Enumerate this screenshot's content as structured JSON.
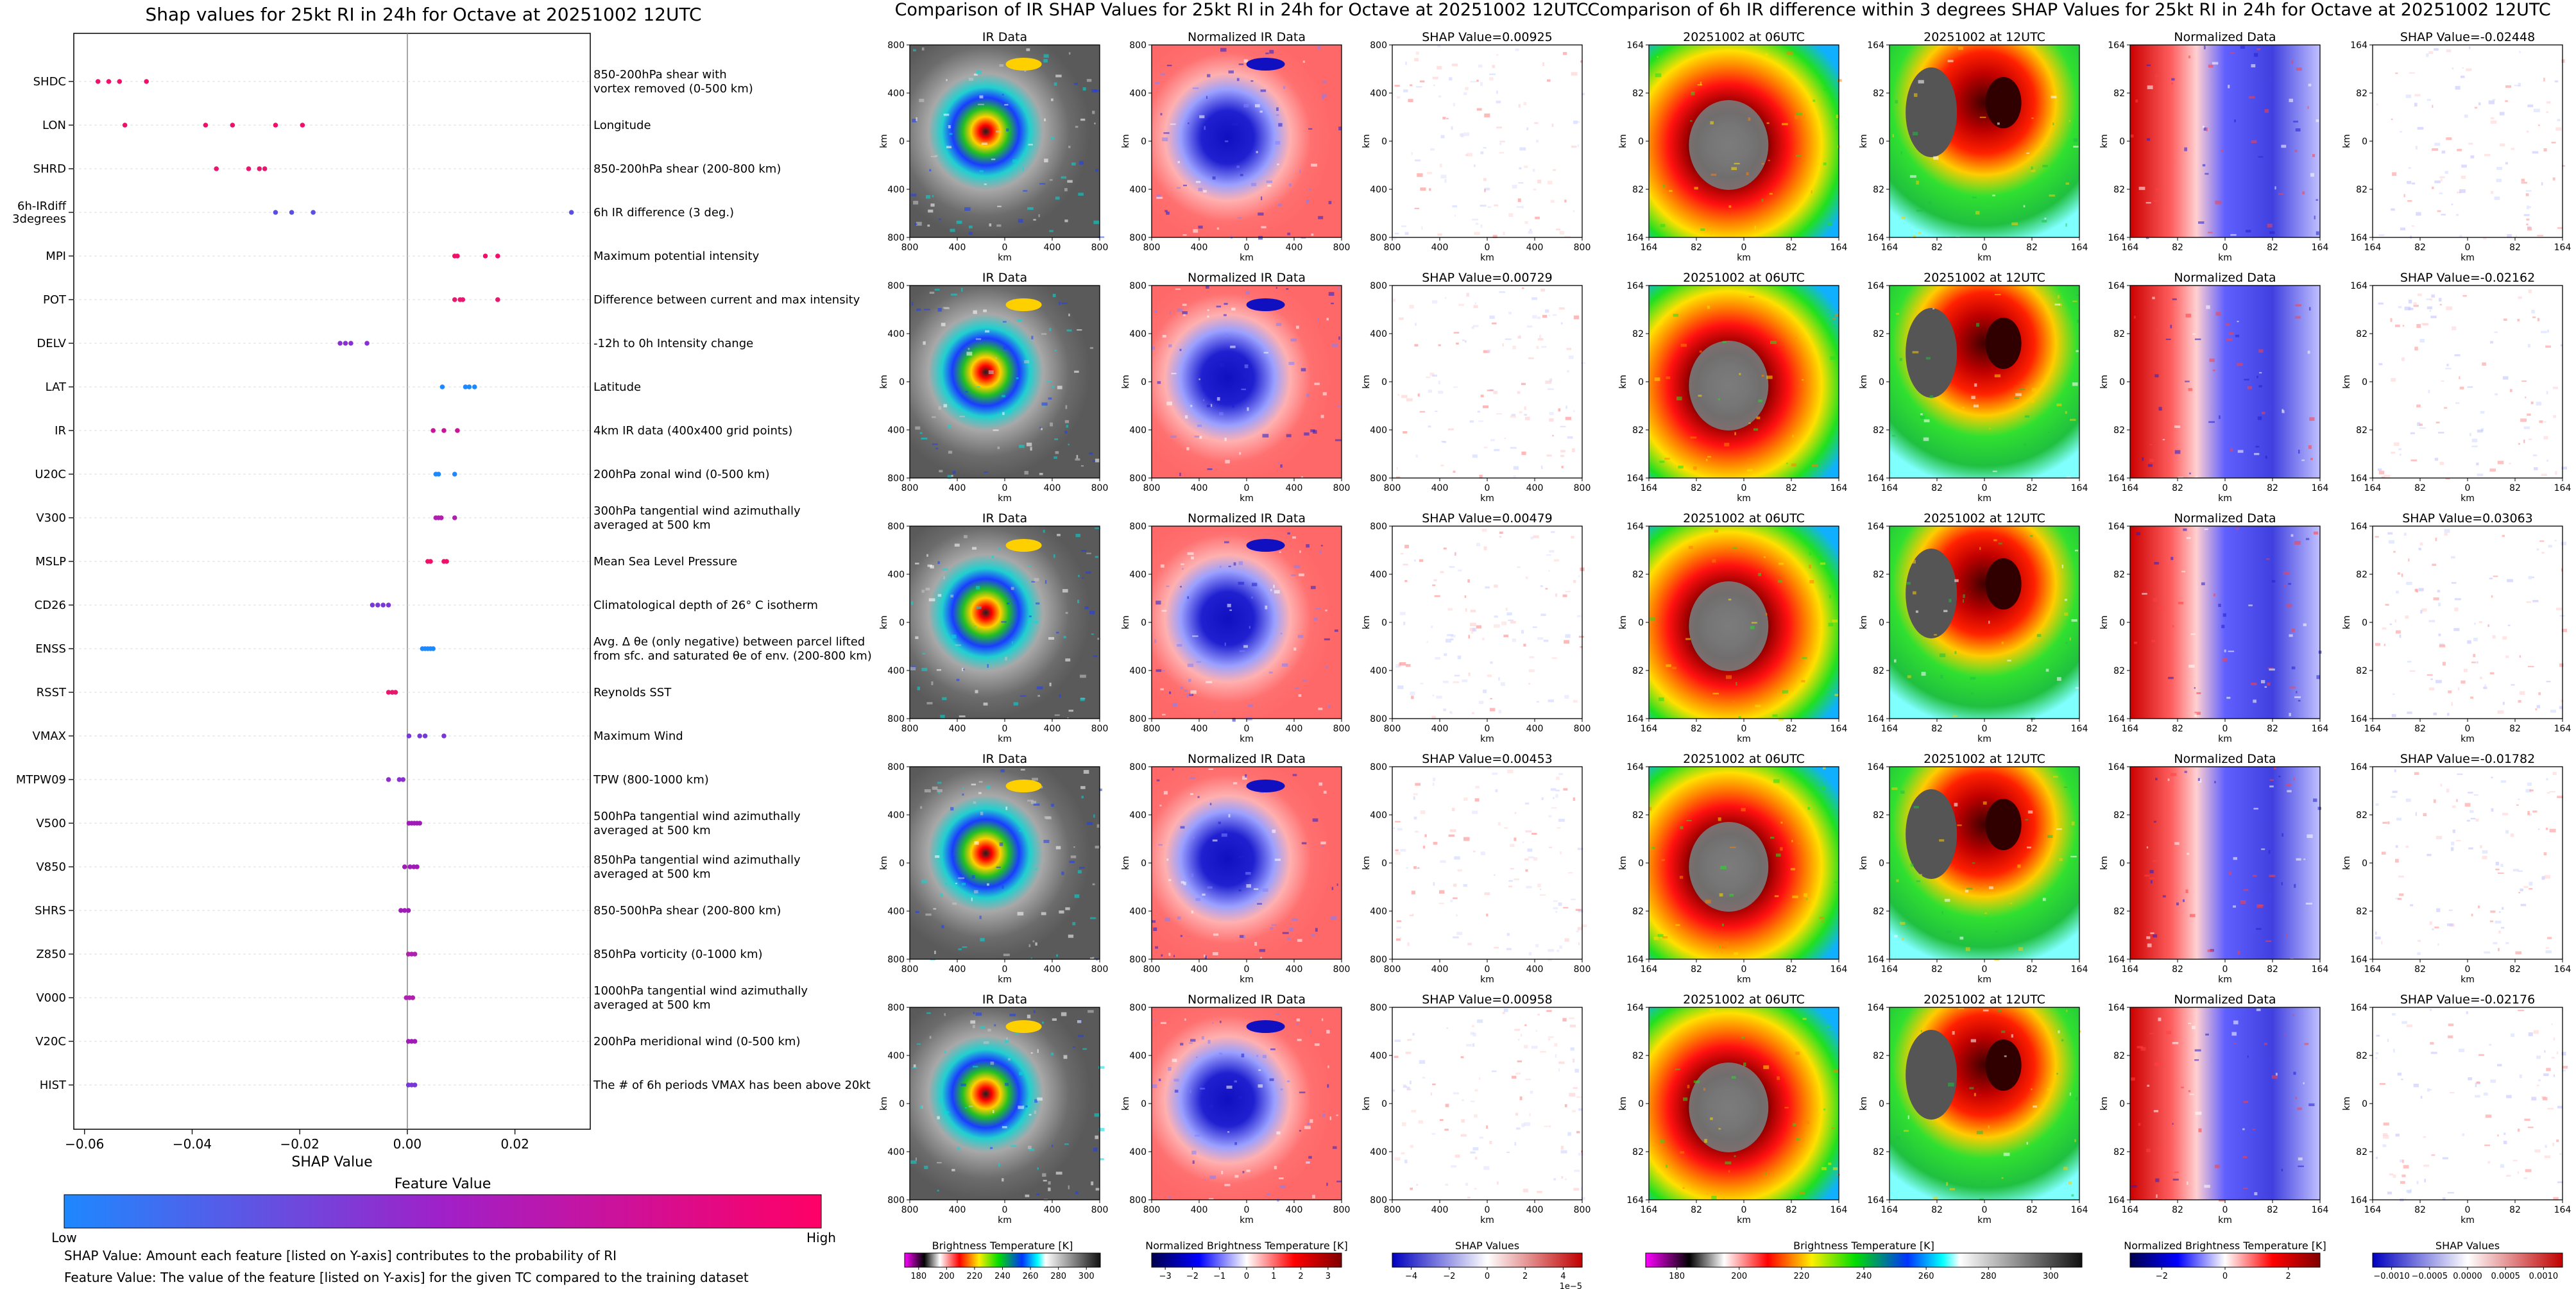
{
  "panel_a": {
    "title": "Shap values for 25kt RI in 24h for Octave at 20251002 12UTC",
    "xlabel": "SHAP Value",
    "xlim": [
      -0.062,
      0.034
    ],
    "xticks": [
      "−0.06",
      "−0.04",
      "−0.02",
      "0.00",
      "0.02"
    ],
    "colorbar_title": "Feature Value",
    "colorbar_low": "Low",
    "colorbar_high": "High",
    "colorbar_colors": [
      "#1e88ff",
      "#a020c8",
      "#ff0066"
    ],
    "footnote_1": "SHAP Value: Amount each feature [listed on Y-axis] contributes to the probability of RI",
    "footnote_2": "Feature Value: The value of the feature [listed on Y-axis] for the given TC compared to the training dataset"
  },
  "chart_data": {
    "type": "scatter",
    "title": "Shap values for 25kt RI in 24h for Octave at 20251002 12UTC",
    "xlabel": "SHAP Value",
    "xlim": [
      -0.062,
      0.034
    ],
    "features": [
      {
        "code": "SHDC",
        "desc": [
          "850-200hPa shear with",
          "vortex removed (0-500 km)"
        ],
        "color": "#f0106a",
        "shap": [
          -0.0575,
          -0.0555,
          -0.0535,
          -0.0485
        ]
      },
      {
        "code": "LON",
        "desc": [
          "Longitude"
        ],
        "color": "#f0106a",
        "shap": [
          -0.0525,
          -0.0375,
          -0.0325,
          -0.0245,
          -0.0195
        ]
      },
      {
        "code": "SHRD",
        "desc": [
          "850-200hPa shear (200-800 km)"
        ],
        "color": "#e8186e",
        "shap": [
          -0.0355,
          -0.0295,
          -0.0275,
          -0.0265
        ]
      },
      {
        "code": "6h-IRdiff\n3degrees",
        "desc": [
          "6h IR difference (3 deg.)"
        ],
        "color": "#5a50e0",
        "shap": [
          -0.0245,
          -0.0215,
          -0.0175,
          0.0305
        ]
      },
      {
        "code": "MPI",
        "desc": [
          "Maximum potential intensity"
        ],
        "color": "#f0106a",
        "shap": [
          0.0088,
          0.0093,
          0.0145,
          0.0168
        ]
      },
      {
        "code": "POT",
        "desc": [
          "Difference between current and max intensity"
        ],
        "color": "#e8186e",
        "shap": [
          0.0088,
          0.0098,
          0.0103,
          0.0168
        ]
      },
      {
        "code": "DELV",
        "desc": [
          "-12h to 0h Intensity change"
        ],
        "color": "#8a30d0",
        "shap": [
          -0.0125,
          -0.0115,
          -0.0105,
          -0.0075
        ]
      },
      {
        "code": "LAT",
        "desc": [
          "Latitude"
        ],
        "color": "#1e88ff",
        "shap": [
          0.0065,
          0.0108,
          0.0115,
          0.0125
        ]
      },
      {
        "code": "IR",
        "desc": [
          "4km IR data (400x400 grid points)"
        ],
        "color": "#c8149a",
        "shap": [
          0.0048,
          0.0068,
          0.0093
        ]
      },
      {
        "code": "U20C",
        "desc": [
          "200hPa zonal wind (0-500 km)"
        ],
        "color": "#1e88ff",
        "shap": [
          0.0053,
          0.0058,
          0.0088
        ]
      },
      {
        "code": "V300",
        "desc": [
          "300hPa tangential wind azimuthally",
          "averaged at 500 km"
        ],
        "color": "#b020b0",
        "shap": [
          0.0053,
          0.0058,
          0.0063,
          0.0088
        ]
      },
      {
        "code": "MSLP",
        "desc": [
          "Mean Sea Level Pressure"
        ],
        "color": "#f0106a",
        "shap": [
          0.0038,
          0.0043,
          0.0068,
          0.0073
        ]
      },
      {
        "code": "CD26",
        "desc": [
          "Climatological depth of 26° C isotherm"
        ],
        "color": "#7838d8",
        "shap": [
          -0.0065,
          -0.0055,
          -0.0045,
          -0.0035
        ]
      },
      {
        "code": "ENSS",
        "desc": [
          "Avg. Δ θe (only negative) between parcel lifted",
          "from sfc. and saturated θe of env. (200-800 km)"
        ],
        "color": "#1e88ff",
        "shap": [
          0.0028,
          0.0033,
          0.0038,
          0.0043,
          0.0048
        ]
      },
      {
        "code": "RSST",
        "desc": [
          "Reynolds SST"
        ],
        "color": "#e8186e",
        "shap": [
          -0.0035,
          -0.0028,
          -0.0022
        ]
      },
      {
        "code": "VMAX",
        "desc": [
          "Maximum Wind"
        ],
        "color": "#7838d8",
        "shap": [
          0.0003,
          0.0023,
          0.0033,
          0.0068
        ]
      },
      {
        "code": "MTPW09",
        "desc": [
          "TPW (800-1000 km)"
        ],
        "color": "#8a30d0",
        "shap": [
          -0.0035,
          -0.0015,
          -0.0008
        ]
      },
      {
        "code": "V500",
        "desc": [
          "500hPa tangential wind azimuthally",
          "averaged at 500 km"
        ],
        "color": "#a01ab8",
        "shap": [
          0.0003,
          0.0008,
          0.0013,
          0.0018,
          0.0023
        ]
      },
      {
        "code": "V850",
        "desc": [
          "850hPa tangential wind azimuthally",
          "averaged at 500 km"
        ],
        "color": "#a01ab8",
        "shap": [
          -0.0005,
          0.0005,
          0.0012,
          0.0018
        ]
      },
      {
        "code": "SHRS",
        "desc": [
          "850-500hPa shear (200-800 km)"
        ],
        "color": "#a01ab8",
        "shap": [
          -0.0012,
          -0.0005,
          0.0002
        ]
      },
      {
        "code": "Z850",
        "desc": [
          "850hPa vorticity (0-1000 km)"
        ],
        "color": "#b020b0",
        "shap": [
          0.0002,
          0.0008,
          0.0014
        ]
      },
      {
        "code": "V000",
        "desc": [
          "1000hPa tangential wind azimuthally",
          "averaged at 500 km"
        ],
        "color": "#b020b0",
        "shap": [
          -0.0002,
          0.0004,
          0.001
        ]
      },
      {
        "code": "V20C",
        "desc": [
          "200hPa meridional wind (0-500 km)"
        ],
        "color": "#a01ab8",
        "shap": [
          0.0002,
          0.0008,
          0.0014
        ]
      },
      {
        "code": "HIST",
        "desc": [
          "The # of 6h periods VMAX has been above 20kt"
        ],
        "color": "#7838d8",
        "shap": [
          0.0002,
          0.0008,
          0.0014
        ]
      }
    ]
  },
  "panel_b": {
    "title": "Comparison of IR SHAP Values for 25kt RI in 24h for Octave at 20251002 12UTC",
    "col_titles": [
      "IR Data",
      "Normalized IR Data"
    ],
    "shap_titles": [
      "SHAP Value=0.00925",
      "SHAP Value=0.00729",
      "SHAP Value=0.00479",
      "SHAP Value=0.00453",
      "SHAP Value=0.00958"
    ],
    "axis_label": "km",
    "ticks_x": [
      "800",
      "400",
      "0",
      "400",
      "800"
    ],
    "ticks_y": [
      "800",
      "400",
      "0",
      "400",
      "800"
    ],
    "cb1": {
      "label": "Brightness Temperature [K]",
      "ticks": [
        "180",
        "200",
        "220",
        "240",
        "260",
        "280",
        "300"
      ]
    },
    "cb2": {
      "label": "Normalized Brightness Temperature [K]",
      "ticks": [
        "−3",
        "−2",
        "−1",
        "0",
        "1",
        "2",
        "3"
      ]
    },
    "cb3": {
      "label": "SHAP Values",
      "ticks": [
        "−4",
        "−2",
        "0",
        "2",
        "4"
      ],
      "offset": "1e−5"
    }
  },
  "panel_c": {
    "title": "Comparison of 6h IR difference within 3 degrees SHAP Values for 25kt RI in 24h for Octave at 20251002 12UTC",
    "col_titles": [
      "20251002 at 06UTC",
      "20251002 at 12UTC",
      "Normalized Data"
    ],
    "shap_titles": [
      "SHAP Value=-0.02448",
      "SHAP Value=-0.02162",
      "SHAP Value=0.03063",
      "SHAP Value=-0.01782",
      "SHAP Value=-0.02176"
    ],
    "axis_label": "km",
    "ticks_x": [
      "164",
      "82",
      "0",
      "82",
      "164"
    ],
    "ticks_y": [
      "164",
      "82",
      "0",
      "82",
      "164"
    ],
    "cb1": {
      "label": "Brightness Temperature [K]",
      "ticks": [
        "180",
        "200",
        "220",
        "240",
        "260",
        "280",
        "300"
      ]
    },
    "cb2": {
      "label": "Normalized Brightness Temperature [K]",
      "ticks": [
        "−2",
        "0",
        "2"
      ]
    },
    "cb3": {
      "label": "SHAP Values",
      "ticks": [
        "−0.0010",
        "−0.0005",
        "0.0000",
        "0.0005",
        "0.0010"
      ]
    }
  }
}
